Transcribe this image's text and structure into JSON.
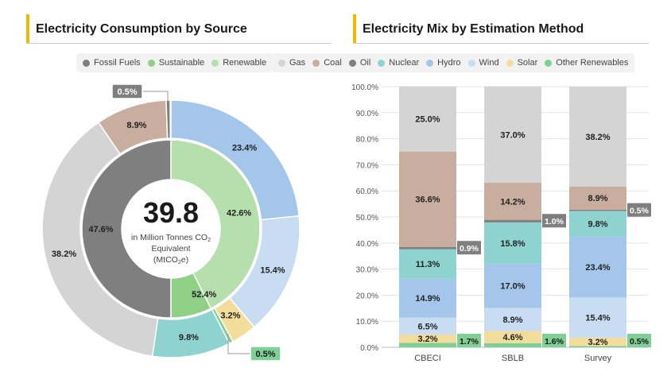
{
  "left_title": "Electricity Consumption by Source",
  "right_title": "Electricity Mix by Estimation Method",
  "left_legend": [
    {
      "label": "Fossil Fuels",
      "color": "#7f7f7f"
    },
    {
      "label": "Sustainable",
      "color": "#8fcf86"
    },
    {
      "label": "Renewable",
      "color": "#b6dfae"
    }
  ],
  "right_legend": [
    {
      "label": "Gas",
      "color": "#d4d4d4"
    },
    {
      "label": "Coal",
      "color": "#c9ad9f"
    },
    {
      "label": "Oil",
      "color": "#7f7f7f"
    },
    {
      "label": "Nuclear",
      "color": "#8ed3cf"
    },
    {
      "label": "Hydro",
      "color": "#a3c6ea"
    },
    {
      "label": "Wind",
      "color": "#c9ddf2"
    },
    {
      "label": "Solar",
      "color": "#f3dd9b"
    },
    {
      "label": "Other Renewables",
      "color": "#7fcf96"
    }
  ],
  "center": {
    "value": "39.8",
    "line1": "in Million Tonnes CO",
    "line1_sub": "2",
    "line2": "Equivalent",
    "line3": "(MtCO",
    "line3_sub": "2",
    "line3_end": "e)"
  },
  "chart_data": [
    {
      "type": "pie",
      "title": "Electricity Consumption by Source",
      "inner_ring": [
        {
          "name": "Fossil Fuels",
          "value": 47.6,
          "label": "47.6%",
          "color": "#7f7f7f"
        },
        {
          "name": "Renewable",
          "value": 42.6,
          "label": "42.6%",
          "color": "#b6dfae"
        },
        {
          "name": "Sustainable",
          "value": 52.4,
          "label": "52.4%",
          "color": "#8fcf86"
        }
      ],
      "outer_ring": [
        {
          "name": "Hydro",
          "value": 23.4,
          "label": "23.4%",
          "color": "#a3c6ea"
        },
        {
          "name": "Wind",
          "value": 15.4,
          "label": "15.4%",
          "color": "#c9ddf2"
        },
        {
          "name": "Solar",
          "value": 3.2,
          "label": "3.2%",
          "color": "#f3dd9b"
        },
        {
          "name": "Other Renewables",
          "value": 0.5,
          "label": "0.5%",
          "color": "#7fcf96"
        },
        {
          "name": "Nuclear",
          "value": 9.8,
          "label": "9.8%",
          "color": "#8ed3cf"
        },
        {
          "name": "Gas",
          "value": 38.2,
          "label": "38.2%",
          "color": "#d4d4d4"
        },
        {
          "name": "Coal",
          "value": 8.9,
          "label": "8.9%",
          "color": "#c9ad9f"
        },
        {
          "name": "Oil",
          "value": 0.5,
          "label": "0.5%",
          "color": "#7f7f7f"
        }
      ]
    },
    {
      "type": "bar",
      "stacked": true,
      "title": "Electricity Mix by Estimation Method",
      "categories": [
        "CBECI",
        "SBLB",
        "Survey"
      ],
      "ylim": [
        0,
        100
      ],
      "yticks": [
        "0.0%",
        "10.0%",
        "20.0%",
        "30.0%",
        "40.0%",
        "50.0%",
        "60.0%",
        "70.0%",
        "80.0%",
        "90.0%",
        "100.0%"
      ],
      "series": [
        {
          "name": "Other Renewables",
          "color": "#7fcf96",
          "values": [
            1.7,
            1.6,
            0.5
          ],
          "labels": [
            "1.7%",
            "1.6%",
            "0.5%"
          ]
        },
        {
          "name": "Solar",
          "color": "#f3dd9b",
          "values": [
            3.2,
            4.6,
            3.2
          ],
          "labels": [
            "3.2%",
            "4.6%",
            "3.2%"
          ]
        },
        {
          "name": "Wind",
          "color": "#c9ddf2",
          "values": [
            6.5,
            8.9,
            15.4
          ],
          "labels": [
            "6.5%",
            "8.9%",
            "15.4%"
          ]
        },
        {
          "name": "Hydro",
          "color": "#a3c6ea",
          "values": [
            14.9,
            17.0,
            23.4
          ],
          "labels": [
            "14.9%",
            "17.0%",
            "23.4%"
          ]
        },
        {
          "name": "Nuclear",
          "color": "#8ed3cf",
          "values": [
            11.3,
            15.8,
            9.8
          ],
          "labels": [
            "11.3%",
            "15.8%",
            "9.8%"
          ]
        },
        {
          "name": "Oil",
          "color": "#7f7f7f",
          "values": [
            0.9,
            1.0,
            0.5
          ],
          "labels": [
            "0.9%",
            "1.0%",
            "0.5%"
          ]
        },
        {
          "name": "Coal",
          "color": "#c9ad9f",
          "values": [
            36.6,
            14.2,
            8.9
          ],
          "labels": [
            "36.6%",
            "14.2%",
            "8.9%"
          ]
        },
        {
          "name": "Gas",
          "color": "#d4d4d4",
          "values": [
            25.0,
            37.0,
            38.2
          ],
          "labels": [
            "25.0%",
            "37.0%",
            "38.2%"
          ]
        }
      ]
    }
  ]
}
